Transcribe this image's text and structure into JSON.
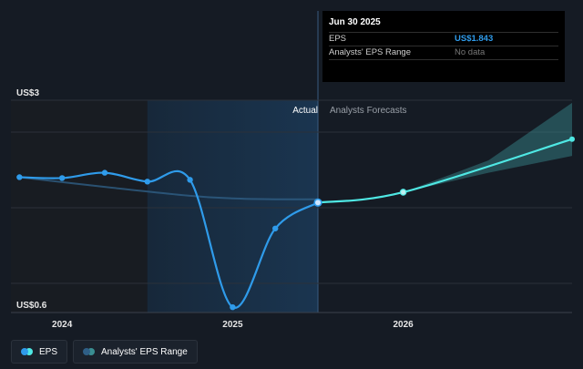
{
  "tooltip": {
    "date": "Jun 30 2025",
    "rows": [
      {
        "name": "EPS",
        "value": "US$1.843"
      },
      {
        "name": "Analysts' EPS Range",
        "value": "No data"
      }
    ]
  },
  "chart_data": {
    "type": "line",
    "y_axis_labels": {
      "top": "US$3",
      "bottom": "US$0.6"
    },
    "ylim": [
      0.6,
      3.0
    ],
    "x_ticks": [
      {
        "label": "2024",
        "x": 2024.0
      },
      {
        "label": "2025",
        "x": 2025.0
      },
      {
        "label": "2026",
        "x": 2026.0
      }
    ],
    "xlim": [
      2023.7,
      2026.99
    ],
    "grid": true,
    "regions": {
      "actual_label": "Actual",
      "forecast_label": "Analysts Forecasts",
      "shaded_start": 2024.5,
      "divider": 2025.5
    },
    "series": [
      {
        "name": "EPS",
        "color": "#2f9bea",
        "points": [
          [
            2023.75,
            2.13
          ],
          [
            2024.0,
            2.12
          ],
          [
            2024.25,
            2.18
          ],
          [
            2024.5,
            2.08
          ],
          [
            2024.75,
            2.1
          ],
          [
            2025.0,
            0.66
          ],
          [
            2025.25,
            1.55
          ],
          [
            2025.5,
            1.843
          ]
        ]
      },
      {
        "name": "EPS Forecast",
        "color": "#4fe8e4",
        "points": [
          [
            2025.5,
            1.843
          ],
          [
            2026.0,
            1.96
          ],
          [
            2026.99,
            2.56
          ]
        ]
      }
    ],
    "faded_line": {
      "color": "#2f5f86",
      "points": [
        [
          2023.75,
          2.13
        ],
        [
          2024.25,
          2.02
        ],
        [
          2024.75,
          1.92
        ],
        [
          2025.0,
          1.89
        ],
        [
          2025.25,
          1.88
        ],
        [
          2025.5,
          1.88
        ]
      ]
    },
    "forecast_range": {
      "color": "#3a8f92",
      "points": [
        [
          2025.5,
          1.843,
          1.843
        ],
        [
          2026.0,
          1.96,
          1.96
        ],
        [
          2026.5,
          2.18,
          2.32
        ],
        [
          2026.99,
          2.37,
          2.97
        ]
      ]
    }
  },
  "legend": [
    {
      "label": "EPS",
      "color1": "#2f9bea",
      "color2": "#4fe8e4"
    },
    {
      "label": "Analysts' EPS Range",
      "color1": "#2f5f86",
      "color2": "#3a8f92"
    }
  ]
}
